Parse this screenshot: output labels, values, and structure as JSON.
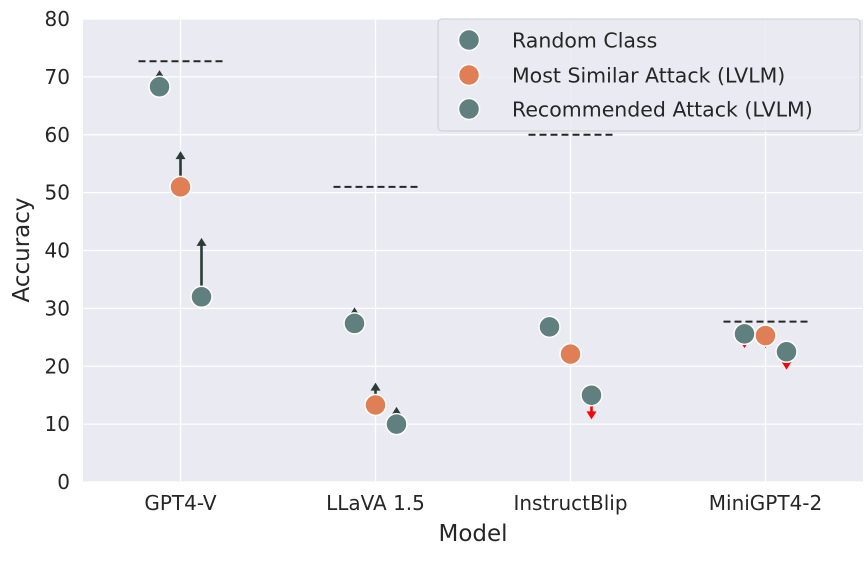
{
  "chart_data": {
    "type": "scatter",
    "xlabel": "Model",
    "ylabel": "Accuracy",
    "categories": [
      "GPT4-V",
      "LLaVA 1.5",
      "InstructBlip",
      "MiniGPT4-2"
    ],
    "ylim": [
      0,
      80
    ],
    "yticks": [
      "0",
      "10",
      "20",
      "30",
      "40",
      "50",
      "60",
      "70",
      "80"
    ],
    "grid": true,
    "legend_position": "top-right",
    "series": [
      {
        "name": "Random Class",
        "color": "#5f807e",
        "values": [
          68.3,
          27.4,
          26.8,
          25.6
        ]
      },
      {
        "name": "Most Similar Attack (LVLM)",
        "color": "#e07f55",
        "values": [
          51.0,
          13.3,
          22.1,
          25.3
        ]
      },
      {
        "name": "Recommended Attack (LVLM)",
        "color": "#5f807e",
        "values": [
          32.0,
          10.0,
          15.0,
          22.5
        ]
      }
    ],
    "arrow_targets": [
      [
        71.0,
        57.0,
        42.0
      ],
      [
        30.0,
        17.0,
        12.8
      ],
      [
        25.8,
        21.3,
        11.0
      ],
      [
        23.3,
        23.3,
        19.6
      ]
    ],
    "baselines": [
      72.7,
      51.0,
      60.0,
      27.7
    ],
    "colors": {
      "background": "#eaeaf2",
      "grid": "#ffffff",
      "arrow_up": "#2d3b36",
      "arrow_down": "#ff0000",
      "baseline": "#262626"
    }
  }
}
